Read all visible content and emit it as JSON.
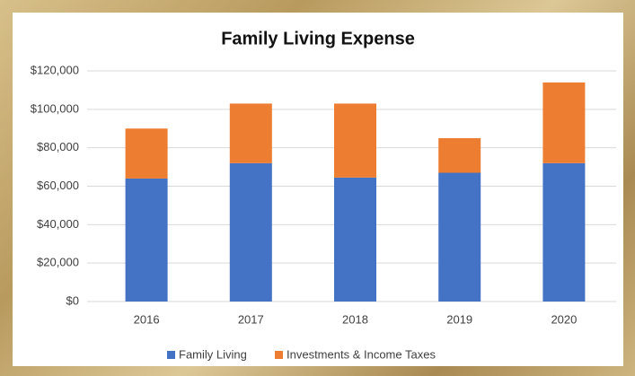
{
  "chart_data": {
    "type": "stacked_bar",
    "title": "Family Living Expense",
    "categories": [
      "2016",
      "2017",
      "2018",
      "2019",
      "2020"
    ],
    "series": [
      {
        "name": "Family Living",
        "color": "#4472c4",
        "values": [
          64000,
          72000,
          64500,
          67000,
          72000
        ]
      },
      {
        "name": "Investments & Income Taxes",
        "color": "#ed7d31",
        "values": [
          26000,
          31000,
          38500,
          18000,
          42000
        ]
      }
    ],
    "ylim": [
      0,
      120000
    ],
    "yticks": [
      {
        "value": 0,
        "label": "$0"
      },
      {
        "value": 20000,
        "label": "$20,000"
      },
      {
        "value": 40000,
        "label": "$40,000"
      },
      {
        "value": 60000,
        "label": "$60,000"
      },
      {
        "value": 80000,
        "label": "$80,000"
      },
      {
        "value": 100000,
        "label": "$100,000"
      },
      {
        "value": 120000,
        "label": "$120,000"
      }
    ],
    "grid": true,
    "legend": "bottom"
  }
}
